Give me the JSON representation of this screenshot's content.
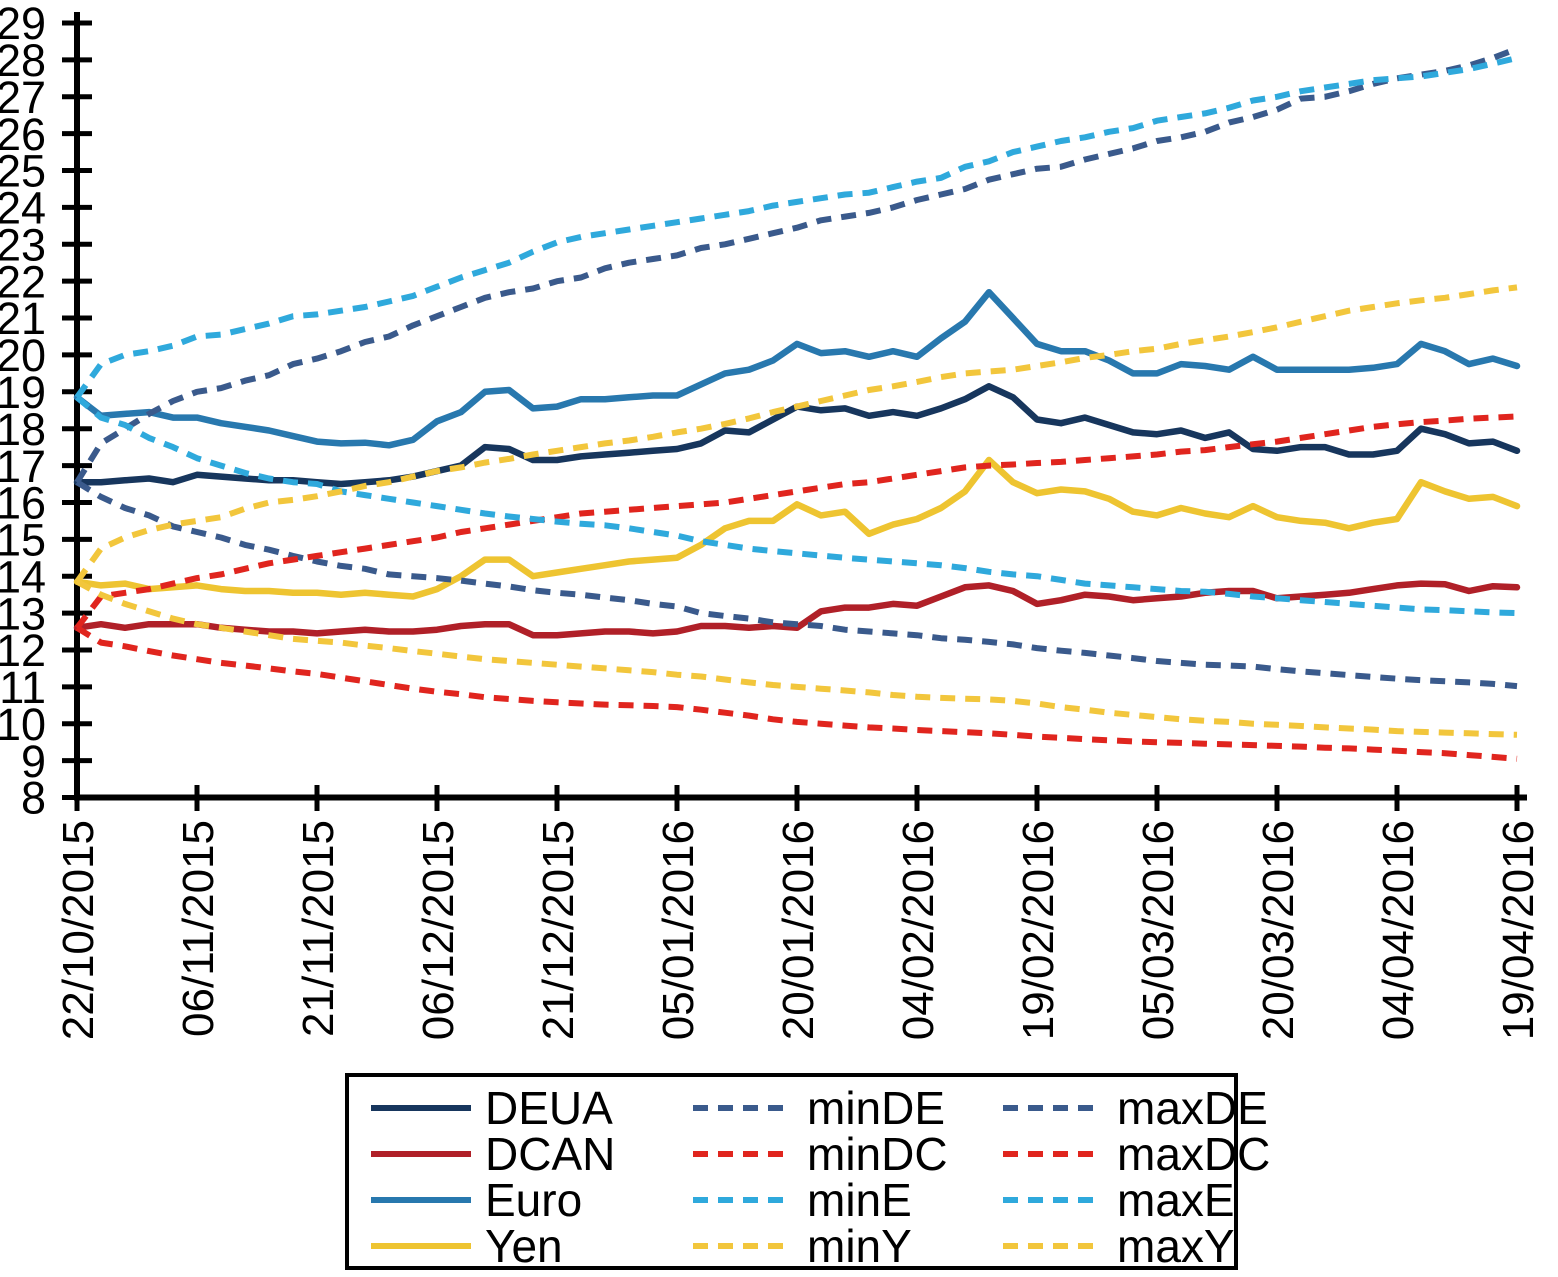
{
  "chart_data": {
    "type": "line",
    "title": "",
    "xlabel": "",
    "ylabel": "",
    "grid": false,
    "legend_position": "bottom",
    "ylim": [
      8,
      29
    ],
    "y_ticks": [
      8,
      9,
      10,
      11,
      12,
      13,
      14,
      15,
      16,
      17,
      18,
      19,
      20,
      21,
      22,
      23,
      24,
      25,
      26,
      27,
      28,
      29
    ],
    "x_tick_labels": [
      "22/10/2015",
      "06/11/2015",
      "21/11/2015",
      "06/12/2015",
      "21/12/2015",
      "05/01/2016",
      "20/01/2016",
      "04/02/2016",
      "19/02/2016",
      "05/03/2016",
      "20/03/2016",
      "04/04/2016",
      "19/04/2016"
    ],
    "x_tick_days": [
      0,
      15,
      30,
      45,
      60,
      75,
      90,
      105,
      120,
      135,
      150,
      165,
      180
    ],
    "x_range_days": [
      0,
      180
    ],
    "sample_interval_days": 3,
    "axis_color": "#000000",
    "draw_order": [
      "DEUA",
      "DCAN",
      "Euro",
      "Yen",
      "minDE",
      "maxDE",
      "minDC",
      "maxDC",
      "minE",
      "maxE",
      "minY",
      "maxY"
    ],
    "legend_rows": [
      [
        "DEUA",
        "minDE",
        "maxDE"
      ],
      [
        "DCAN",
        "minDC",
        "maxDC"
      ],
      [
        "Euro",
        "minE",
        "maxE"
      ],
      [
        "Yen",
        "minY",
        "maxY"
      ]
    ],
    "series": [
      {
        "name": "DEUA",
        "style": "solid",
        "color": "#17365d",
        "values": [
          16.55,
          16.55,
          16.6,
          16.65,
          16.55,
          16.75,
          16.7,
          16.65,
          16.6,
          16.6,
          16.55,
          16.5,
          16.55,
          16.6,
          16.7,
          16.85,
          17.0,
          17.5,
          17.45,
          17.15,
          17.15,
          17.25,
          17.3,
          17.35,
          17.4,
          17.45,
          17.6,
          17.95,
          17.9,
          18.25,
          18.6,
          18.5,
          18.55,
          18.35,
          18.45,
          18.35,
          18.55,
          18.8,
          19.15,
          18.85,
          18.25,
          18.15,
          18.3,
          18.1,
          17.9,
          17.85,
          17.95,
          17.75,
          17.9,
          17.45,
          17.4,
          17.5,
          17.5,
          17.3,
          17.3,
          17.4,
          18.0,
          17.85,
          17.6,
          17.65,
          17.4
        ]
      },
      {
        "name": "DCAN",
        "style": "solid",
        "color": "#b02028",
        "values": [
          12.6,
          12.7,
          12.6,
          12.7,
          12.7,
          12.7,
          12.6,
          12.55,
          12.5,
          12.5,
          12.45,
          12.5,
          12.55,
          12.5,
          12.5,
          12.55,
          12.65,
          12.7,
          12.7,
          12.4,
          12.4,
          12.45,
          12.5,
          12.5,
          12.45,
          12.5,
          12.65,
          12.65,
          12.6,
          12.65,
          12.6,
          13.05,
          13.15,
          13.15,
          13.25,
          13.2,
          13.45,
          13.7,
          13.75,
          13.6,
          13.25,
          13.35,
          13.5,
          13.45,
          13.35,
          13.4,
          13.45,
          13.55,
          13.6,
          13.6,
          13.4,
          13.45,
          13.5,
          13.55,
          13.65,
          13.75,
          13.8,
          13.78,
          13.6,
          13.73,
          13.7
        ]
      },
      {
        "name": "Euro",
        "style": "solid",
        "color": "#2878ae",
        "values": [
          18.85,
          18.35,
          18.4,
          18.45,
          18.3,
          18.3,
          18.15,
          18.05,
          17.95,
          17.8,
          17.65,
          17.6,
          17.62,
          17.55,
          17.7,
          18.2,
          18.45,
          19.0,
          19.05,
          18.55,
          18.6,
          18.8,
          18.8,
          18.85,
          18.9,
          18.9,
          19.2,
          19.5,
          19.6,
          19.85,
          20.3,
          20.05,
          20.1,
          19.95,
          20.1,
          19.95,
          20.45,
          20.9,
          21.7,
          21.0,
          20.3,
          20.1,
          20.1,
          19.85,
          19.5,
          19.5,
          19.75,
          19.7,
          19.6,
          19.95,
          19.6,
          19.6,
          19.6,
          19.6,
          19.65,
          19.75,
          20.3,
          20.1,
          19.75,
          19.9,
          19.7
        ]
      },
      {
        "name": "Yen",
        "style": "solid",
        "color": "#eec431",
        "values": [
          13.85,
          13.75,
          13.8,
          13.65,
          13.7,
          13.75,
          13.65,
          13.6,
          13.6,
          13.55,
          13.55,
          13.5,
          13.55,
          13.5,
          13.45,
          13.65,
          14.0,
          14.45,
          14.45,
          14.0,
          14.1,
          14.2,
          14.3,
          14.4,
          14.45,
          14.5,
          14.85,
          15.3,
          15.5,
          15.5,
          15.95,
          15.65,
          15.75,
          15.15,
          15.4,
          15.55,
          15.85,
          16.3,
          17.15,
          16.55,
          16.25,
          16.35,
          16.3,
          16.1,
          15.75,
          15.65,
          15.85,
          15.7,
          15.6,
          15.9,
          15.6,
          15.5,
          15.45,
          15.3,
          15.45,
          15.55,
          16.55,
          16.3,
          16.1,
          16.15,
          15.9
        ]
      },
      {
        "name": "minDE",
        "style": "dashed",
        "color": "#3a5a8c",
        "values": [
          16.55,
          16.15,
          15.85,
          15.65,
          15.35,
          15.2,
          15.05,
          14.85,
          14.72,
          14.55,
          14.4,
          14.28,
          14.2,
          14.05,
          14.0,
          13.95,
          13.88,
          13.8,
          13.72,
          13.62,
          13.55,
          13.5,
          13.42,
          13.35,
          13.25,
          13.18,
          13.0,
          12.92,
          12.85,
          12.75,
          12.7,
          12.65,
          12.55,
          12.5,
          12.45,
          12.4,
          12.32,
          12.28,
          12.22,
          12.15,
          12.05,
          11.98,
          11.92,
          11.85,
          11.78,
          11.7,
          11.65,
          11.6,
          11.58,
          11.55,
          11.48,
          11.42,
          11.37,
          11.32,
          11.27,
          11.22,
          11.18,
          11.15,
          11.12,
          11.08,
          11.02
        ]
      },
      {
        "name": "maxDE",
        "style": "dashed",
        "color": "#3a5a8c",
        "values": [
          16.55,
          17.6,
          18.0,
          18.4,
          18.75,
          19.0,
          19.1,
          19.3,
          19.45,
          19.75,
          19.9,
          20.1,
          20.35,
          20.5,
          20.8,
          21.05,
          21.3,
          21.55,
          21.7,
          21.8,
          22.0,
          22.1,
          22.35,
          22.5,
          22.6,
          22.7,
          22.9,
          23.0,
          23.15,
          23.3,
          23.45,
          23.65,
          23.75,
          23.85,
          24.0,
          24.2,
          24.35,
          24.5,
          24.75,
          24.9,
          25.05,
          25.1,
          25.3,
          25.45,
          25.6,
          25.8,
          25.9,
          26.05,
          26.3,
          26.45,
          26.65,
          26.95,
          27.0,
          27.15,
          27.35,
          27.5,
          27.6,
          27.7,
          27.85,
          28.05,
          28.3
        ]
      },
      {
        "name": "minDC",
        "style": "dashed",
        "color": "#e0251e",
        "values": [
          12.6,
          12.2,
          12.1,
          11.97,
          11.85,
          11.75,
          11.65,
          11.58,
          11.5,
          11.42,
          11.35,
          11.25,
          11.15,
          11.05,
          10.95,
          10.87,
          10.8,
          10.72,
          10.67,
          10.62,
          10.58,
          10.55,
          10.52,
          10.5,
          10.48,
          10.45,
          10.38,
          10.3,
          10.22,
          10.12,
          10.05,
          10.0,
          9.95,
          9.9,
          9.87,
          9.83,
          9.8,
          9.77,
          9.74,
          9.7,
          9.65,
          9.62,
          9.58,
          9.55,
          9.52,
          9.5,
          9.48,
          9.46,
          9.44,
          9.42,
          9.4,
          9.38,
          9.35,
          9.33,
          9.3,
          9.27,
          9.23,
          9.2,
          9.15,
          9.1,
          9.05
        ]
      },
      {
        "name": "maxDC",
        "style": "dashed",
        "color": "#e0251e",
        "values": [
          12.6,
          13.45,
          13.55,
          13.65,
          13.8,
          13.95,
          14.05,
          14.2,
          14.35,
          14.45,
          14.55,
          14.65,
          14.75,
          14.85,
          14.95,
          15.05,
          15.2,
          15.3,
          15.4,
          15.5,
          15.6,
          15.7,
          15.75,
          15.8,
          15.85,
          15.9,
          15.95,
          16.0,
          16.1,
          16.2,
          16.3,
          16.4,
          16.5,
          16.55,
          16.65,
          16.75,
          16.85,
          16.95,
          17.0,
          17.03,
          17.07,
          17.1,
          17.15,
          17.2,
          17.25,
          17.3,
          17.38,
          17.42,
          17.5,
          17.58,
          17.65,
          17.75,
          17.85,
          17.95,
          18.05,
          18.12,
          18.18,
          18.22,
          18.27,
          18.3,
          18.33
        ]
      },
      {
        "name": "minE",
        "style": "dashed",
        "color": "#2fa9dc",
        "values": [
          18.85,
          18.3,
          18.1,
          17.75,
          17.5,
          17.2,
          17.0,
          16.8,
          16.65,
          16.55,
          16.5,
          16.3,
          16.2,
          16.1,
          16.0,
          15.9,
          15.8,
          15.7,
          15.62,
          15.55,
          15.48,
          15.42,
          15.38,
          15.3,
          15.2,
          15.1,
          14.95,
          14.85,
          14.75,
          14.68,
          14.62,
          14.56,
          14.5,
          14.45,
          14.4,
          14.35,
          14.3,
          14.22,
          14.12,
          14.05,
          14.0,
          13.9,
          13.8,
          13.75,
          13.7,
          13.65,
          13.6,
          13.58,
          13.52,
          13.45,
          13.4,
          13.35,
          13.3,
          13.25,
          13.2,
          13.15,
          13.1,
          13.08,
          13.05,
          13.02,
          13.0
        ]
      },
      {
        "name": "maxE",
        "style": "dashed",
        "color": "#2fa9dc",
        "values": [
          18.85,
          19.75,
          20.0,
          20.1,
          20.25,
          20.5,
          20.55,
          20.7,
          20.85,
          21.05,
          21.1,
          21.2,
          21.3,
          21.45,
          21.6,
          21.85,
          22.1,
          22.3,
          22.5,
          22.8,
          23.05,
          23.2,
          23.3,
          23.4,
          23.5,
          23.6,
          23.7,
          23.8,
          23.9,
          24.05,
          24.15,
          24.25,
          24.35,
          24.4,
          24.55,
          24.7,
          24.8,
          25.1,
          25.25,
          25.5,
          25.65,
          25.8,
          25.9,
          26.05,
          26.15,
          26.35,
          26.45,
          26.55,
          26.7,
          26.9,
          27.0,
          27.15,
          27.25,
          27.35,
          27.45,
          27.5,
          27.55,
          27.65,
          27.75,
          27.9,
          28.05
        ]
      },
      {
        "name": "minY",
        "style": "dashed",
        "color": "#f2c63c",
        "values": [
          13.85,
          13.5,
          13.25,
          13.05,
          12.85,
          12.7,
          12.6,
          12.5,
          12.4,
          12.3,
          12.25,
          12.2,
          12.12,
          12.05,
          11.97,
          11.9,
          11.82,
          11.75,
          11.7,
          11.65,
          11.6,
          11.55,
          11.5,
          11.45,
          11.4,
          11.33,
          11.28,
          11.2,
          11.12,
          11.05,
          11.0,
          10.95,
          10.9,
          10.85,
          10.78,
          10.73,
          10.7,
          10.68,
          10.66,
          10.62,
          10.55,
          10.45,
          10.38,
          10.3,
          10.24,
          10.18,
          10.12,
          10.08,
          10.05,
          10.0,
          9.97,
          9.94,
          9.9,
          9.87,
          9.84,
          9.8,
          9.78,
          9.76,
          9.74,
          9.72,
          9.7
        ]
      },
      {
        "name": "maxY",
        "style": "dashed",
        "color": "#f2c63c",
        "values": [
          13.85,
          14.75,
          15.05,
          15.25,
          15.4,
          15.5,
          15.6,
          15.83,
          16.0,
          16.07,
          16.17,
          16.3,
          16.45,
          16.55,
          16.7,
          16.85,
          16.95,
          17.08,
          17.18,
          17.3,
          17.4,
          17.5,
          17.6,
          17.68,
          17.78,
          17.9,
          18.0,
          18.13,
          18.28,
          18.45,
          18.6,
          18.75,
          18.9,
          19.05,
          19.15,
          19.27,
          19.4,
          19.5,
          19.55,
          19.6,
          19.7,
          19.8,
          19.92,
          20.0,
          20.1,
          20.17,
          20.3,
          20.4,
          20.5,
          20.62,
          20.75,
          20.9,
          21.05,
          21.2,
          21.3,
          21.4,
          21.48,
          21.55,
          21.65,
          21.75,
          21.83
        ]
      }
    ]
  }
}
